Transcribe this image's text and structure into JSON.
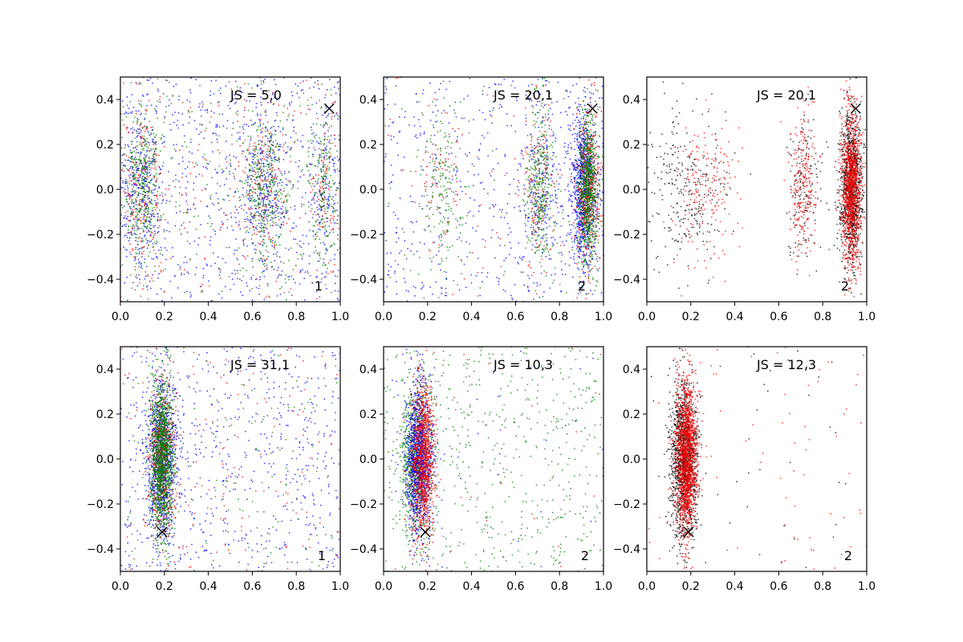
{
  "chart_data": [
    {
      "type": "scatter",
      "annotation": "JS = 5,0",
      "corner_label": "1",
      "xlim": [
        0.0,
        1.0
      ],
      "ylim": [
        -0.5,
        0.5
      ],
      "xticks": [
        "0.0",
        "0.2",
        "0.4",
        "0.6",
        "0.8",
        "1.0"
      ],
      "yticks": [
        "-0.4",
        "-0.2",
        "0.0",
        "0.2",
        "0.4"
      ],
      "marker": {
        "x": 0.95,
        "y": 0.36
      },
      "series": [
        {
          "color": "#0000ff",
          "count": 1400,
          "bands": [
            {
              "w": 0.22,
              "cx": 0.1,
              "sx": 0.045,
              "sy": 0.17
            },
            {
              "w": 0.2,
              "cx": 0.65,
              "sx": 0.055,
              "sy": 0.17
            },
            {
              "w": 0.1,
              "cx": 0.93,
              "sx": 0.035,
              "sy": 0.17
            },
            {
              "w": 0.48,
              "uniform": true
            }
          ]
        },
        {
          "color": "#ff0000",
          "count": 650,
          "bands": [
            {
              "w": 0.3,
              "cx": 0.1,
              "sx": 0.045,
              "sy": 0.17
            },
            {
              "w": 0.28,
              "cx": 0.65,
              "sx": 0.055,
              "sy": 0.17
            },
            {
              "w": 0.12,
              "cx": 0.93,
              "sx": 0.035,
              "sy": 0.17
            },
            {
              "w": 0.3,
              "uniform": true
            }
          ]
        },
        {
          "color": "#008000",
          "count": 1150,
          "bands": [
            {
              "w": 0.32,
              "cx": 0.1,
              "sx": 0.04,
              "sy": 0.17
            },
            {
              "w": 0.32,
              "cx": 0.66,
              "sx": 0.05,
              "sy": 0.17
            },
            {
              "w": 0.16,
              "cx": 0.93,
              "sx": 0.035,
              "sy": 0.17
            },
            {
              "w": 0.2,
              "uniform": true
            }
          ]
        }
      ]
    },
    {
      "type": "scatter",
      "annotation": "JS = 20,1",
      "corner_label": "2",
      "xlim": [
        0.0,
        1.0
      ],
      "ylim": [
        -0.5,
        0.5
      ],
      "xticks": [
        "0.0",
        "0.2",
        "0.4",
        "0.6",
        "0.8",
        "1.0"
      ],
      "yticks": [
        "-0.4",
        "-0.2",
        "0.0",
        "0.2",
        "0.4"
      ],
      "marker": {
        "x": 0.95,
        "y": 0.36
      },
      "series": [
        {
          "color": "#0000ff",
          "count": 1600,
          "bands": [
            {
              "w": 0.55,
              "cx": 0.91,
              "sx": 0.03,
              "sy": 0.17
            },
            {
              "w": 0.1,
              "cx": 0.72,
              "sx": 0.04,
              "sy": 0.17
            },
            {
              "w": 0.35,
              "uniform": true
            }
          ]
        },
        {
          "color": "#ff0000",
          "count": 800,
          "bands": [
            {
              "w": 0.62,
              "cx": 0.93,
              "sx": 0.025,
              "sy": 0.17
            },
            {
              "w": 0.2,
              "cx": 0.71,
              "sx": 0.035,
              "sy": 0.17
            },
            {
              "w": 0.08,
              "cx": 0.27,
              "sx": 0.05,
              "sy": 0.17
            },
            {
              "w": 0.1,
              "uniform": true
            }
          ]
        },
        {
          "color": "#008000",
          "count": 1400,
          "bands": [
            {
              "w": 0.6,
              "cx": 0.93,
              "sx": 0.022,
              "sy": 0.17
            },
            {
              "w": 0.24,
              "cx": 0.71,
              "sx": 0.03,
              "sy": 0.17
            },
            {
              "w": 0.12,
              "cx": 0.26,
              "sx": 0.05,
              "sy": 0.17
            },
            {
              "w": 0.04,
              "uniform": true
            }
          ]
        }
      ]
    },
    {
      "type": "scatter",
      "annotation": "JS = 20,1",
      "corner_label": "2",
      "xlim": [
        0.0,
        1.0
      ],
      "ylim": [
        -0.5,
        0.5
      ],
      "xticks": [
        "0.0",
        "0.2",
        "0.4",
        "0.6",
        "0.8",
        "1.0"
      ],
      "yticks": [
        "-0.4",
        "-0.2",
        "0.0",
        "0.2",
        "0.4"
      ],
      "marker": {
        "x": 0.95,
        "y": 0.36
      },
      "series": [
        {
          "color": "#000000",
          "count": 1500,
          "bands": [
            {
              "w": 0.72,
              "cx": 0.93,
              "sx": 0.025,
              "sy": 0.17
            },
            {
              "w": 0.1,
              "cx": 0.72,
              "sx": 0.04,
              "sy": 0.17
            },
            {
              "w": 0.18,
              "cx": 0.18,
              "sx": 0.1,
              "sy": 0.17
            }
          ]
        },
        {
          "color": "#ff0000",
          "count": 1700,
          "bands": [
            {
              "w": 0.72,
              "cx": 0.93,
              "sx": 0.022,
              "sy": 0.17
            },
            {
              "w": 0.16,
              "cx": 0.71,
              "sx": 0.03,
              "sy": 0.17
            },
            {
              "w": 0.12,
              "cx": 0.27,
              "sx": 0.07,
              "sy": 0.17
            }
          ]
        }
      ]
    },
    {
      "type": "scatter",
      "annotation": "JS = 31,1",
      "corner_label": "1",
      "xlim": [
        0.0,
        1.0
      ],
      "ylim": [
        -0.5,
        0.5
      ],
      "xticks": [
        "0.0",
        "0.2",
        "0.4",
        "0.6",
        "0.8",
        "1.0"
      ],
      "yticks": [
        "-0.4",
        "-0.2",
        "0.0",
        "0.2",
        "0.4"
      ],
      "marker": {
        "x": 0.19,
        "y": -0.325
      },
      "series": [
        {
          "color": "#0000ff",
          "count": 1600,
          "bands": [
            {
              "w": 0.6,
              "cx": 0.19,
              "sx": 0.035,
              "sy": 0.17
            },
            {
              "w": 0.4,
              "uniform": true
            }
          ]
        },
        {
          "color": "#ff0000",
          "count": 700,
          "bands": [
            {
              "w": 0.8,
              "cx": 0.19,
              "sx": 0.03,
              "sy": 0.17
            },
            {
              "w": 0.2,
              "uniform": true
            }
          ]
        },
        {
          "color": "#008000",
          "count": 1500,
          "bands": [
            {
              "w": 0.92,
              "cx": 0.19,
              "sx": 0.025,
              "sy": 0.17
            },
            {
              "w": 0.08,
              "uniform": true
            }
          ]
        }
      ]
    },
    {
      "type": "scatter",
      "annotation": "JS = 10,3",
      "corner_label": "2",
      "xlim": [
        0.0,
        1.0
      ],
      "ylim": [
        -0.5,
        0.5
      ],
      "xticks": [
        "0.0",
        "0.2",
        "0.4",
        "0.6",
        "0.8",
        "1.0"
      ],
      "yticks": [
        "-0.4",
        "-0.2",
        "0.0",
        "0.2",
        "0.4"
      ],
      "marker": {
        "x": 0.19,
        "y": -0.325
      },
      "series": [
        {
          "color": "#008000",
          "count": 1500,
          "bands": [
            {
              "w": 0.6,
              "cx": 0.15,
              "sx": 0.035,
              "sy": 0.17
            },
            {
              "w": 0.4,
              "uniform": true
            }
          ]
        },
        {
          "color": "#0000ff",
          "count": 1200,
          "bands": [
            {
              "w": 0.96,
              "cx": 0.16,
              "sx": 0.03,
              "sy": 0.17
            },
            {
              "w": 0.04,
              "uniform": true
            }
          ]
        },
        {
          "color": "#ff0000",
          "count": 1100,
          "bands": [
            {
              "w": 0.97,
              "cx": 0.18,
              "sx": 0.025,
              "sy": 0.17
            },
            {
              "w": 0.03,
              "uniform": true
            }
          ]
        }
      ]
    },
    {
      "type": "scatter",
      "annotation": "JS = 12,3",
      "corner_label": "2",
      "xlim": [
        0.0,
        1.0
      ],
      "ylim": [
        -0.5,
        0.5
      ],
      "xticks": [
        "0.0",
        "0.2",
        "0.4",
        "0.6",
        "0.8",
        "1.0"
      ],
      "yticks": [
        "-0.4",
        "-0.2",
        "0.0",
        "0.2",
        "0.4"
      ],
      "marker": {
        "x": 0.19,
        "y": -0.325
      },
      "series": [
        {
          "color": "#000000",
          "count": 1400,
          "bands": [
            {
              "w": 0.96,
              "cx": 0.17,
              "sx": 0.03,
              "sy": 0.17
            },
            {
              "w": 0.04,
              "uniform": true
            }
          ]
        },
        {
          "color": "#ff0000",
          "count": 1700,
          "bands": [
            {
              "w": 0.96,
              "cx": 0.18,
              "sx": 0.025,
              "sy": 0.17
            },
            {
              "w": 0.04,
              "uniform": true
            }
          ]
        }
      ]
    }
  ]
}
